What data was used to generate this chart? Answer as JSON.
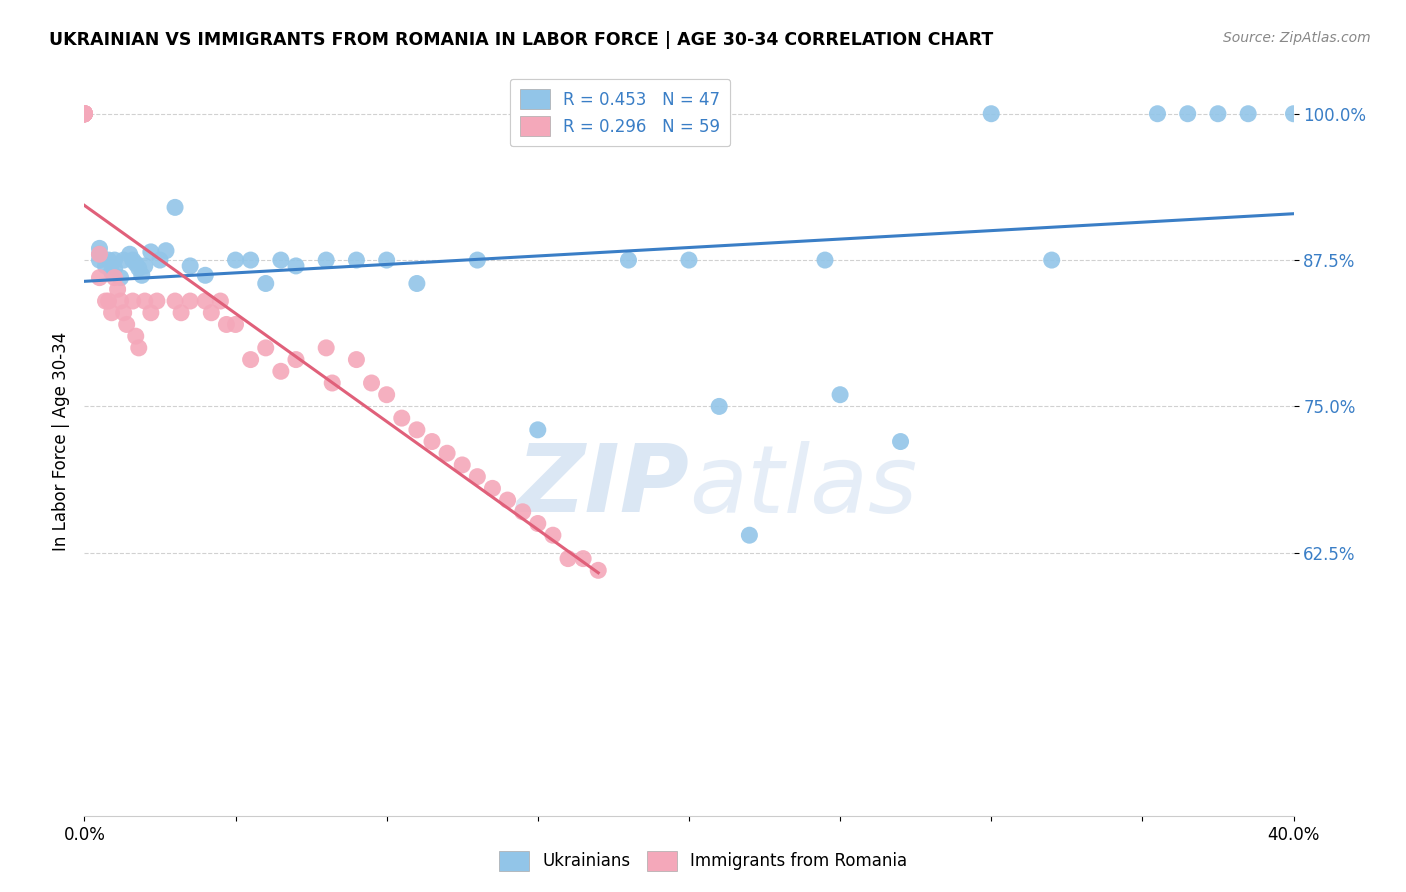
{
  "title": "UKRAINIAN VS IMMIGRANTS FROM ROMANIA IN LABOR FORCE | AGE 30-34 CORRELATION CHART",
  "source": "Source: ZipAtlas.com",
  "ylabel": "In Labor Force | Age 30-34",
  "xlim": [
    0.0,
    0.4
  ],
  "ylim": [
    0.4,
    1.04
  ],
  "yticks": [
    0.625,
    0.75,
    0.875,
    1.0
  ],
  "ytick_labels": [
    "62.5%",
    "75.0%",
    "87.5%",
    "100.0%"
  ],
  "xticks": [
    0.0,
    0.05,
    0.1,
    0.15,
    0.2,
    0.25,
    0.3,
    0.35,
    0.4
  ],
  "xtick_labels": [
    "0.0%",
    "",
    "",
    "",
    "",
    "",
    "",
    "",
    "40.0%"
  ],
  "blue_color": "#92c5e8",
  "pink_color": "#f4a8ba",
  "blue_line_color": "#3a7ec6",
  "pink_line_color": "#e0607a",
  "legend_blue_label": "R = 0.453   N = 47",
  "legend_pink_label": "R = 0.296   N = 59",
  "legend_bottom_blue": "Ukrainians",
  "legend_bottom_pink": "Immigrants from Romania",
  "watermark_zip": "ZIP",
  "watermark_atlas": "atlas",
  "blue_x": [
    0.005,
    0.005,
    0.005,
    0.007,
    0.008,
    0.009,
    0.01,
    0.01,
    0.012,
    0.013,
    0.015,
    0.016,
    0.017,
    0.018,
    0.019,
    0.02,
    0.022,
    0.025,
    0.027,
    0.03,
    0.035,
    0.04,
    0.05,
    0.055,
    0.06,
    0.065,
    0.07,
    0.08,
    0.09,
    0.1,
    0.11,
    0.13,
    0.15,
    0.18,
    0.2,
    0.21,
    0.22,
    0.245,
    0.25,
    0.27,
    0.3,
    0.32,
    0.355,
    0.365,
    0.375,
    0.385,
    0.4
  ],
  "blue_y": [
    0.875,
    0.88,
    0.885,
    0.87,
    0.875,
    0.865,
    0.875,
    0.868,
    0.86,
    0.875,
    0.88,
    0.875,
    0.872,
    0.868,
    0.862,
    0.87,
    0.882,
    0.875,
    0.883,
    0.92,
    0.87,
    0.862,
    0.875,
    0.875,
    0.855,
    0.875,
    0.87,
    0.875,
    0.875,
    0.875,
    0.855,
    0.875,
    0.73,
    0.875,
    0.875,
    0.75,
    0.64,
    0.875,
    0.76,
    0.72,
    1.0,
    0.875,
    1.0,
    1.0,
    1.0,
    1.0,
    1.0
  ],
  "pink_x": [
    0.0,
    0.0,
    0.0,
    0.0,
    0.0,
    0.0,
    0.0,
    0.0,
    0.0,
    0.0,
    0.0,
    0.0,
    0.005,
    0.005,
    0.007,
    0.008,
    0.009,
    0.01,
    0.011,
    0.012,
    0.013,
    0.014,
    0.016,
    0.017,
    0.018,
    0.02,
    0.022,
    0.024,
    0.03,
    0.032,
    0.035,
    0.04,
    0.042,
    0.045,
    0.047,
    0.05,
    0.055,
    0.06,
    0.065,
    0.07,
    0.08,
    0.082,
    0.09,
    0.095,
    0.1,
    0.105,
    0.11,
    0.115,
    0.12,
    0.125,
    0.13,
    0.135,
    0.14,
    0.145,
    0.15,
    0.155,
    0.16,
    0.165,
    0.17
  ],
  "pink_y": [
    1.0,
    1.0,
    1.0,
    1.0,
    1.0,
    1.0,
    1.0,
    1.0,
    1.0,
    1.0,
    1.0,
    1.0,
    0.88,
    0.86,
    0.84,
    0.84,
    0.83,
    0.86,
    0.85,
    0.84,
    0.83,
    0.82,
    0.84,
    0.81,
    0.8,
    0.84,
    0.83,
    0.84,
    0.84,
    0.83,
    0.84,
    0.84,
    0.83,
    0.84,
    0.82,
    0.82,
    0.79,
    0.8,
    0.78,
    0.79,
    0.8,
    0.77,
    0.79,
    0.77,
    0.76,
    0.74,
    0.73,
    0.72,
    0.71,
    0.7,
    0.69,
    0.68,
    0.67,
    0.66,
    0.65,
    0.64,
    0.62,
    0.62,
    0.61
  ]
}
